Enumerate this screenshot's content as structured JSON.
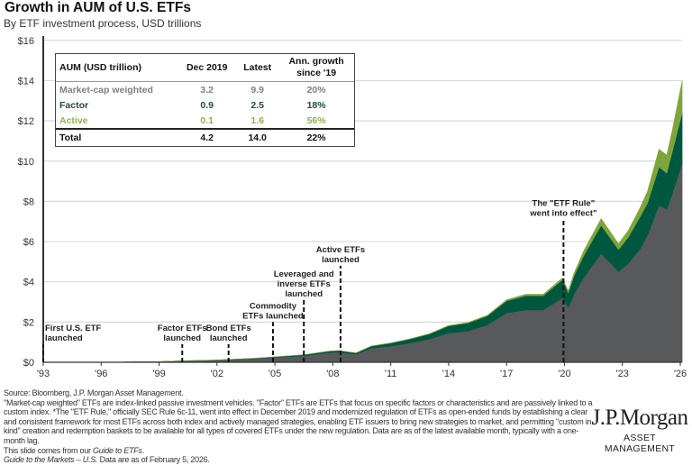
{
  "header": {
    "title": "Growth in AUM of U.S. ETFs",
    "subtitle": "By ETF investment process, USD trillions"
  },
  "chart_data": {
    "type": "area",
    "stacked": true,
    "x_unit": "year",
    "xlim": [
      1993,
      2026.1
    ],
    "ylim": [
      0,
      16
    ],
    "yticks": [
      0,
      2,
      4,
      6,
      8,
      10,
      12,
      14,
      16
    ],
    "ytick_labels": [
      "$0",
      "$2",
      "$4",
      "$6",
      "$8",
      "$10",
      "$12",
      "$14",
      "$16"
    ],
    "xticks": [
      1993,
      1996,
      1999,
      2002,
      2005,
      2008,
      2011,
      2014,
      2017,
      2020,
      2023,
      2026
    ],
    "xtick_labels": [
      "'93",
      "'96",
      "'99",
      "'02",
      "'05",
      "'08",
      "'11",
      "'14",
      "'17",
      "'20",
      "'23",
      "'26"
    ],
    "grid": true,
    "colors": {
      "Market-cap weighted": "#58595b",
      "Factor": "#00573f",
      "Active": "#7ea53c"
    },
    "x": [
      1993,
      1996,
      1999,
      2000,
      2002,
      2004,
      2005,
      2006.5,
      2007.8,
      2008.3,
      2009.2,
      2010,
      2011,
      2012,
      2013,
      2014,
      2015,
      2016,
      2017,
      2018,
      2018.9,
      2019.9,
      2020.2,
      2020.5,
      2021,
      2021.9,
      2022.8,
      2023.3,
      2023.9,
      2024.3,
      2024.9,
      2025.3,
      2025.6,
      2026.1
    ],
    "series": [
      {
        "name": "Market-cap weighted",
        "values": [
          0.0,
          0.002,
          0.03,
          0.06,
          0.1,
          0.18,
          0.24,
          0.32,
          0.48,
          0.5,
          0.4,
          0.7,
          0.8,
          0.95,
          1.15,
          1.45,
          1.55,
          1.85,
          2.45,
          2.6,
          2.6,
          3.2,
          2.7,
          3.4,
          4.2,
          5.4,
          4.5,
          4.9,
          5.6,
          6.3,
          7.8,
          7.6,
          8.4,
          9.9
        ]
      },
      {
        "name": "Factor",
        "values": [
          0.0,
          0.0,
          0.0,
          0.005,
          0.01,
          0.02,
          0.03,
          0.05,
          0.07,
          0.08,
          0.06,
          0.1,
          0.15,
          0.2,
          0.25,
          0.35,
          0.4,
          0.45,
          0.6,
          0.7,
          0.7,
          0.9,
          0.75,
          0.9,
          1.1,
          1.4,
          1.1,
          1.3,
          1.6,
          1.6,
          1.9,
          1.8,
          2.1,
          2.5
        ]
      },
      {
        "name": "Active",
        "values": [
          0.0,
          0.0,
          0.0,
          0.0,
          0.0,
          0.0,
          0.0,
          0.0,
          0.0,
          0.002,
          0.005,
          0.01,
          0.015,
          0.02,
          0.02,
          0.03,
          0.03,
          0.04,
          0.06,
          0.08,
          0.08,
          0.1,
          0.1,
          0.15,
          0.25,
          0.35,
          0.3,
          0.35,
          0.45,
          0.6,
          0.9,
          0.9,
          1.1,
          1.6
        ]
      }
    ],
    "annotations": [
      {
        "year": 1993.0,
        "top": 0.9,
        "lines": [
          "First U.S. ETF",
          "launched"
        ],
        "align": "left"
      },
      {
        "year": 2000.2,
        "top": 0.9,
        "lines": [
          "Factor ETFs",
          "launched"
        ],
        "align": "center"
      },
      {
        "year": 2002.6,
        "top": 0.9,
        "lines": [
          "Bond ETFs",
          "launched"
        ],
        "align": "center"
      },
      {
        "year": 2004.9,
        "top": 2.0,
        "lines": [
          "Commodity",
          "ETFs launched"
        ],
        "align": "center"
      },
      {
        "year": 2006.5,
        "top": 3.1,
        "lines": [
          "Leveraged and",
          "inverse ETFs",
          "launched"
        ],
        "align": "center"
      },
      {
        "year": 2008.4,
        "top": 4.8,
        "lines": [
          "Active ETFs",
          "launched"
        ],
        "align": "center"
      },
      {
        "year": 2019.95,
        "top": 7.1,
        "lines": [
          "The \"ETF Rule\"",
          "went into effect\""
        ],
        "align": "center"
      }
    ]
  },
  "table": {
    "headers": [
      "AUM (USD trillion)",
      "Dec 2019",
      "Latest",
      "Ann. growth",
      "since '19"
    ],
    "rows": [
      {
        "label": "Market-cap weighted",
        "dec2019": "3.2",
        "latest": "9.9",
        "growth": "20%",
        "color": "#808080"
      },
      {
        "label": "Factor",
        "dec2019": "0.9",
        "latest": "2.5",
        "growth": "18%",
        "color": "#1f4d2e"
      },
      {
        "label": "Active",
        "dec2019": "0.1",
        "latest": "1.6",
        "growth": "56%",
        "color": "#8db34f"
      }
    ],
    "total": {
      "label": "Total",
      "dec2019": "4.2",
      "latest": "14.0",
      "growth": "22%"
    }
  },
  "footer": {
    "source": "Source: Bloomberg, J.P. Morgan Asset Management.",
    "note": "\"Market-cap weighted\" ETFs are index-linked passive investment vehicles. \"Factor\" ETFs are ETFs that focus on specific factors or characteristics and are passively linked to a custom index. *The \"ETF Rule,\" officially SEC Rule 6c-11, went into effect in December 2019 and modernized regulation of ETFs as open-ended funds by establishing a clear and consistent framework for most ETFs across both index and actively managed strategies, enabling ETF issuers to bring new strategies to market, and permitting \"custom in-kind\" creation and redemption baskets to be available for all types of covered ETFs under the new regulation. Data are as of the latest available month, typically with a one-month lag.",
    "slide_prefix": "This slide comes from our ",
    "slide_guide": "Guide to ETFs",
    "slide_suffix": ".",
    "gtm_italic": "Guide to the Markets – U.S.",
    "gtm_rest": " Data are as of February 5, 2026."
  },
  "logo": {
    "name": "J.P.Morgan",
    "tagline": "ASSET MANAGEMENT"
  }
}
